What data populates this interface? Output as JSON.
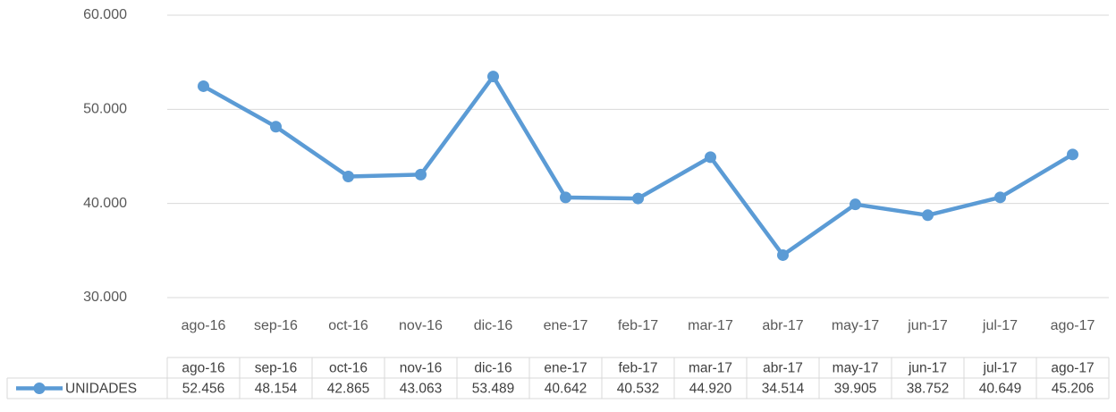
{
  "chart_data": {
    "type": "line",
    "categories": [
      "ago-16",
      "sep-16",
      "oct-16",
      "nov-16",
      "dic-16",
      "ene-17",
      "feb-17",
      "mar-17",
      "abr-17",
      "may-17",
      "jun-17",
      "jul-17",
      "ago-17"
    ],
    "series": [
      {
        "name": "UNIDADES",
        "color": "#5b9bd5",
        "values": [
          52456,
          48154,
          42865,
          43063,
          53489,
          40642,
          40532,
          44920,
          34514,
          39905,
          38752,
          40649,
          45206
        ],
        "value_labels": [
          "52.456",
          "48.154",
          "42.865",
          "43.063",
          "53.489",
          "40.642",
          "40.532",
          "44.920",
          "34.514",
          "39.905",
          "38.752",
          "40.649",
          "45.206"
        ]
      }
    ],
    "ylim": [
      30000,
      60000
    ],
    "yticks": [
      {
        "value": 30000,
        "label": "30.000"
      },
      {
        "value": 40000,
        "label": "40.000"
      },
      {
        "value": 50000,
        "label": "50.000"
      },
      {
        "value": 60000,
        "label": "60.000"
      }
    ],
    "grid": true,
    "data_table": true
  }
}
